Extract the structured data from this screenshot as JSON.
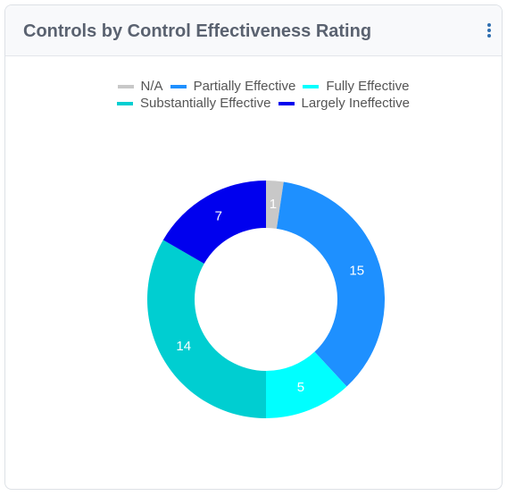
{
  "chart_data": {
    "type": "donut",
    "title": "Controls by Control Effectiveness Rating",
    "categories": [
      "N/A",
      "Partially Effective",
      "Fully Effective",
      "Substantially Effective",
      "Largely Ineffective"
    ],
    "values": [
      1,
      15,
      5,
      14,
      7
    ],
    "colors": [
      "#c8c8c8",
      "#1e90ff",
      "#00ffff",
      "#00ced1",
      "#0000ee"
    ],
    "legend": "top"
  }
}
